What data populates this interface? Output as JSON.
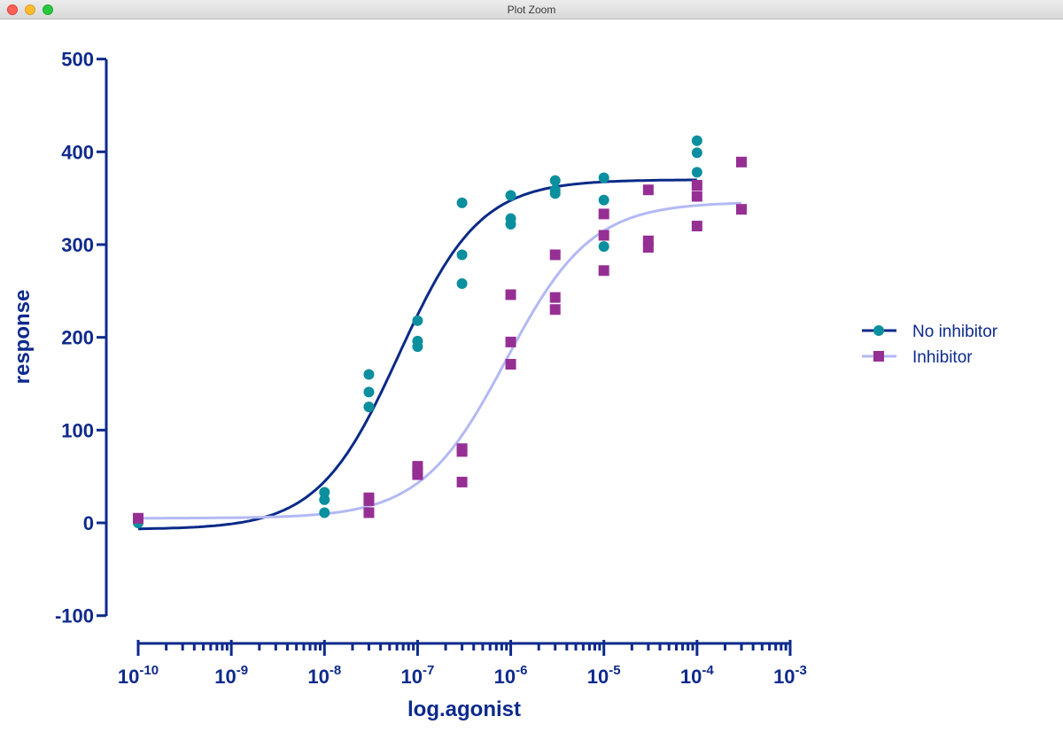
{
  "window": {
    "title": "Plot Zoom"
  },
  "colors": {
    "axis": "#0e2a8c",
    "series1": "#0a2a88",
    "series1_points": "#0a8f9f",
    "series2": "#b3b9f4",
    "series2_points": "#962f94"
  },
  "chart_data": {
    "type": "scatter",
    "title": "",
    "xlabel": "log.agonist",
    "ylabel": "response",
    "xscale": "log",
    "xlim": [
      1e-10,
      0.001
    ],
    "ylim": [
      -100,
      500
    ],
    "yticks": [
      -100,
      0,
      100,
      200,
      300,
      400,
      500
    ],
    "ytick_labels": [
      "-100",
      "0",
      "100",
      "200",
      "300",
      "400",
      "500"
    ],
    "xticks": [
      -10,
      -9,
      -8,
      -7,
      -6,
      -5,
      -4,
      -3
    ],
    "xtick_labels": [
      {
        "base": "10",
        "exp": "-10"
      },
      {
        "base": "10",
        "exp": "-9"
      },
      {
        "base": "10",
        "exp": "-8"
      },
      {
        "base": "10",
        "exp": "-7"
      },
      {
        "base": "10",
        "exp": "-6"
      },
      {
        "base": "10",
        "exp": "-5"
      },
      {
        "base": "10",
        "exp": "-4"
      },
      {
        "base": "10",
        "exp": "-3"
      }
    ],
    "grid": false,
    "legend_position": "right",
    "series": [
      {
        "name": "No inhibitor",
        "marker": "circle",
        "points": [
          [
            1e-10,
            0
          ],
          [
            1e-08,
            33
          ],
          [
            1e-08,
            25
          ],
          [
            1e-08,
            11
          ],
          [
            3e-08,
            160
          ],
          [
            3e-08,
            141
          ],
          [
            3e-08,
            125
          ],
          [
            1e-07,
            218
          ],
          [
            1e-07,
            196
          ],
          [
            1e-07,
            190
          ],
          [
            3e-07,
            345
          ],
          [
            3e-07,
            289
          ],
          [
            3e-07,
            258
          ],
          [
            1e-06,
            353
          ],
          [
            1e-06,
            328
          ],
          [
            1e-06,
            322
          ],
          [
            3e-06,
            369
          ],
          [
            3e-06,
            359
          ],
          [
            3e-06,
            355
          ],
          [
            1e-05,
            372
          ],
          [
            1e-05,
            348
          ],
          [
            1e-05,
            298
          ],
          [
            0.0001,
            412
          ],
          [
            0.0001,
            399
          ],
          [
            0.0001,
            378
          ]
        ],
        "fit": {
          "bottom": -7,
          "top": 370,
          "logEC50": -7.2,
          "hill": 1,
          "range": [
            1e-10,
            0.0001
          ]
        }
      },
      {
        "name": "Inhibitor",
        "marker": "square",
        "points": [
          [
            1e-10,
            5
          ],
          [
            3e-08,
            27
          ],
          [
            3e-08,
            24
          ],
          [
            3e-08,
            11
          ],
          [
            1e-07,
            61
          ],
          [
            1e-07,
            56
          ],
          [
            1e-07,
            52
          ],
          [
            3e-07,
            80
          ],
          [
            3e-07,
            77
          ],
          [
            3e-07,
            44
          ],
          [
            1e-06,
            246
          ],
          [
            1e-06,
            195
          ],
          [
            1e-06,
            171
          ],
          [
            3e-06,
            289
          ],
          [
            3e-06,
            243
          ],
          [
            3e-06,
            230
          ],
          [
            1e-05,
            333
          ],
          [
            1e-05,
            310
          ],
          [
            1e-05,
            272
          ],
          [
            3e-05,
            359
          ],
          [
            3e-05,
            304
          ],
          [
            3e-05,
            297
          ],
          [
            0.0001,
            364
          ],
          [
            0.0001,
            352
          ],
          [
            0.0001,
            320
          ],
          [
            0.0003,
            389
          ],
          [
            0.0003,
            338
          ]
        ],
        "fit": {
          "bottom": 5,
          "top": 346,
          "logEC50": -6.05,
          "hill": 0.95,
          "range": [
            1e-10,
            0.0003
          ]
        }
      }
    ]
  }
}
